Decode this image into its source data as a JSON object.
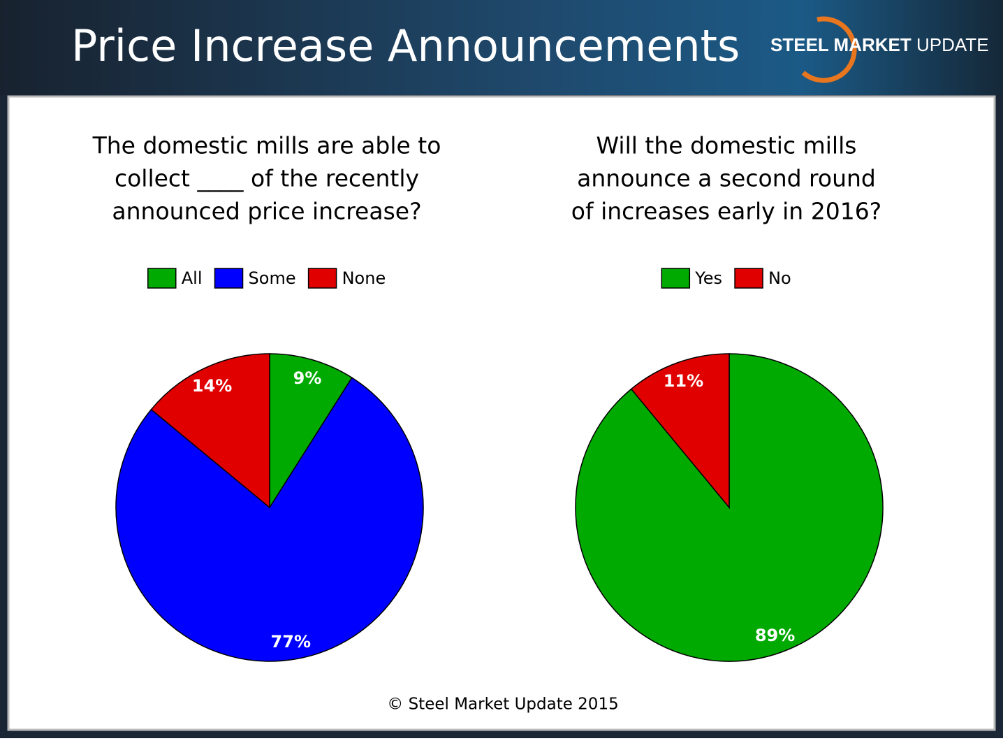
{
  "title": "Price Increase Announcements",
  "logo": {
    "bold": "STEEL MARKET",
    "light": "UPDATE"
  },
  "footer": "© Steel Market Update 2015",
  "chart_data": [
    {
      "type": "pie",
      "title": [
        "The domestic mills are able to",
        "collect ____ of the recently",
        "announced price increase?"
      ],
      "categories": [
        "All",
        "Some",
        "None"
      ],
      "values": [
        9,
        77,
        14
      ],
      "value_labels": [
        "9%",
        "77%",
        "14%"
      ],
      "colors": [
        "#00aa00",
        "#0000ff",
        "#e00000"
      ],
      "legend": "top"
    },
    {
      "type": "pie",
      "title": [
        "Will the domestic mills",
        "announce a second round",
        "of increases early in 2016?"
      ],
      "categories": [
        "Yes",
        "No"
      ],
      "values": [
        89,
        11
      ],
      "value_labels": [
        "89%",
        "11%"
      ],
      "colors": [
        "#00aa00",
        "#e00000"
      ],
      "legend": "top"
    }
  ]
}
